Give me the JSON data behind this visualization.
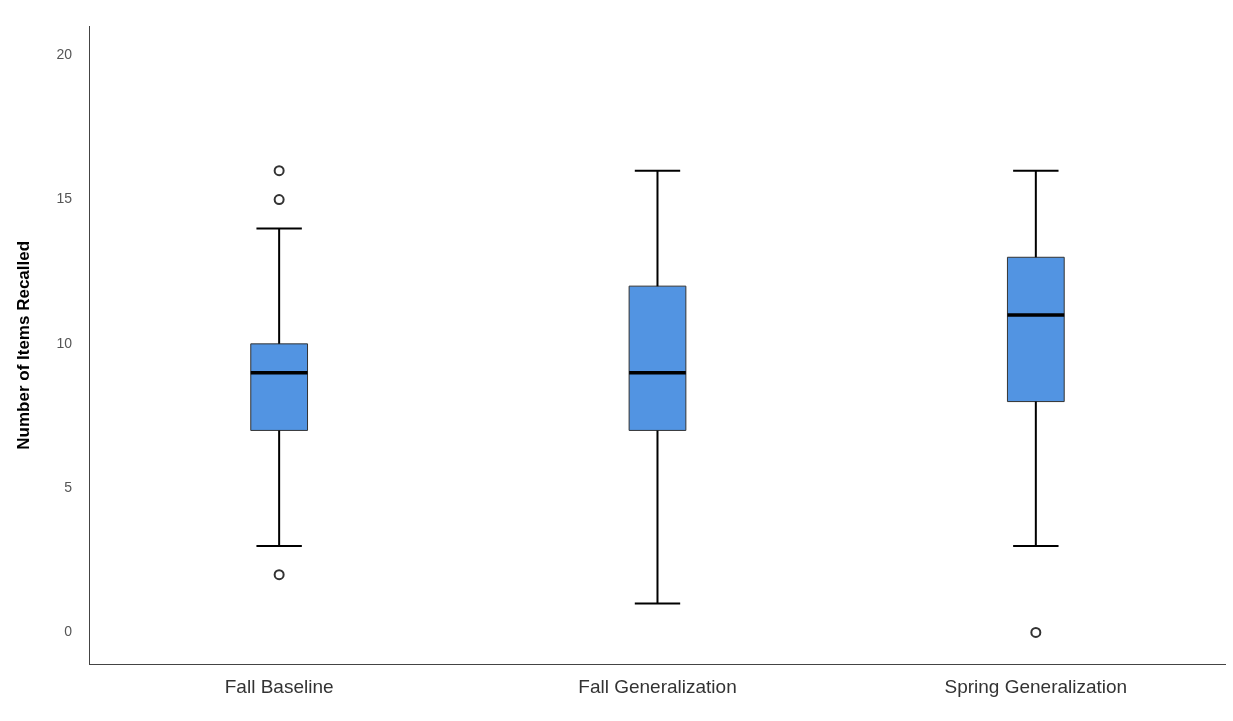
{
  "chart_data": {
    "type": "box",
    "ylabel": "Number of Items Recalled",
    "categories": [
      "Fall Baseline",
      "Fall Generalization",
      "Spring Generalization"
    ],
    "color": "#5294e2",
    "boxes": [
      {
        "low": 3,
        "q1": 7,
        "median": 9,
        "q3": 10,
        "high": 14,
        "outliers": [
          2,
          15,
          16
        ]
      },
      {
        "low": 1,
        "q1": 7,
        "median": 9,
        "q3": 12,
        "high": 16
      },
      {
        "low": 3,
        "q1": 8,
        "median": 11,
        "q3": 13,
        "high": 16,
        "outliers": [
          0
        ]
      }
    ],
    "ylim": [
      -1.1,
      21
    ],
    "yticks": [
      0,
      5,
      10,
      15,
      20
    ]
  }
}
